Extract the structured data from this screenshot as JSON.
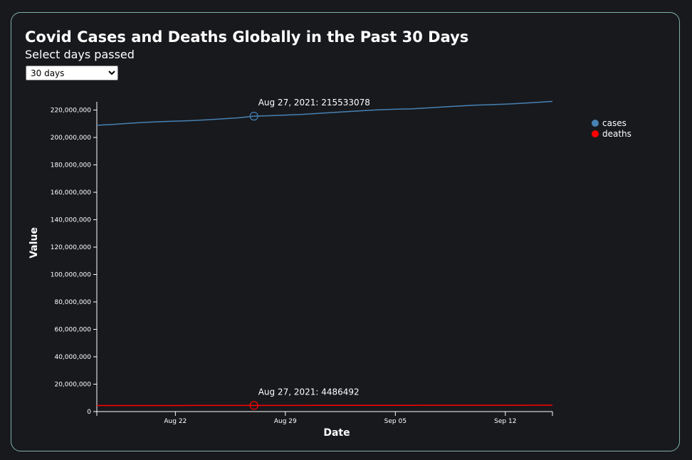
{
  "page": {
    "title": "Covid Cases and Deaths Globally in the Past 30 Days",
    "subtitle": "Select days passed",
    "select": {
      "selected": "30 days",
      "options": [
        "30 days"
      ]
    }
  },
  "colors": {
    "background": "#18191d",
    "card_border": "#7fb0a8",
    "cases": "#4682b4",
    "deaths": "#ff0000",
    "axis": "#ffffff"
  },
  "chart_data": {
    "type": "line",
    "title": "",
    "xlabel": "Date",
    "ylabel": "Value",
    "xlim": [
      "2021-08-17",
      "2021-09-15"
    ],
    "ylim": [
      0,
      226000000
    ],
    "grid": false,
    "legend_position": "right",
    "x_ticks": [
      {
        "date": "2021-08-22",
        "label": "Aug 22"
      },
      {
        "date": "2021-08-29",
        "label": "Aug 29"
      },
      {
        "date": "2021-09-05",
        "label": "Sep 05"
      },
      {
        "date": "2021-09-12",
        "label": "Sep 12"
      }
    ],
    "y_ticks": [
      {
        "value": 0,
        "label": "0"
      },
      {
        "value": 20000000,
        "label": "20,000,000"
      },
      {
        "value": 40000000,
        "label": "40,000,000"
      },
      {
        "value": 60000000,
        "label": "60,000,000"
      },
      {
        "value": 80000000,
        "label": "80,000,000"
      },
      {
        "value": 100000000,
        "label": "100,000,000"
      },
      {
        "value": 120000000,
        "label": "120,000,000"
      },
      {
        "value": 140000000,
        "label": "140,000,000"
      },
      {
        "value": 160000000,
        "label": "160,000,000"
      },
      {
        "value": 180000000,
        "label": "180,000,000"
      },
      {
        "value": 200000000,
        "label": "200,000,000"
      },
      {
        "value": 220000000,
        "label": "220,000,000"
      }
    ],
    "x": [
      "2021-08-17",
      "2021-08-18",
      "2021-08-19",
      "2021-08-20",
      "2021-08-21",
      "2021-08-22",
      "2021-08-23",
      "2021-08-24",
      "2021-08-25",
      "2021-08-26",
      "2021-08-27",
      "2021-08-28",
      "2021-08-29",
      "2021-08-30",
      "2021-08-31",
      "2021-09-01",
      "2021-09-02",
      "2021-09-03",
      "2021-09-04",
      "2021-09-05",
      "2021-09-06",
      "2021-09-07",
      "2021-09-08",
      "2021-09-09",
      "2021-09-10",
      "2021-09-11",
      "2021-09-12",
      "2021-09-13",
      "2021-09-14",
      "2021-09-15"
    ],
    "series": [
      {
        "name": "cases",
        "color": "#4682b4",
        "values": [
          208900000,
          209500000,
          210300000,
          211000000,
          211500000,
          211900000,
          212300000,
          212900000,
          213600000,
          214300000,
          215533078,
          215900000,
          216300000,
          216800000,
          217500000,
          218200000,
          218900000,
          219600000,
          220200000,
          220600000,
          220900000,
          221500000,
          222200000,
          222900000,
          223500000,
          223900000,
          224300000,
          224900000,
          225600000,
          226300000
        ]
      },
      {
        "name": "deaths",
        "color": "#ff0000",
        "values": [
          4390000,
          4400000,
          4410000,
          4420000,
          4430000,
          4440000,
          4450000,
          4460000,
          4470000,
          4480000,
          4486492,
          4495000,
          4500000,
          4510000,
          4520000,
          4530000,
          4540000,
          4550000,
          4560000,
          4570000,
          4575000,
          4585000,
          4595000,
          4605000,
          4615000,
          4625000,
          4630000,
          4640000,
          4650000,
          4660000
        ]
      }
    ],
    "annotations": [
      {
        "series": "cases",
        "date": "2021-08-27",
        "value": 215533078,
        "label": "Aug 27, 2021: 215533078"
      },
      {
        "series": "deaths",
        "date": "2021-08-27",
        "value": 4486492,
        "label": "Aug 27, 2021: 4486492"
      }
    ]
  }
}
